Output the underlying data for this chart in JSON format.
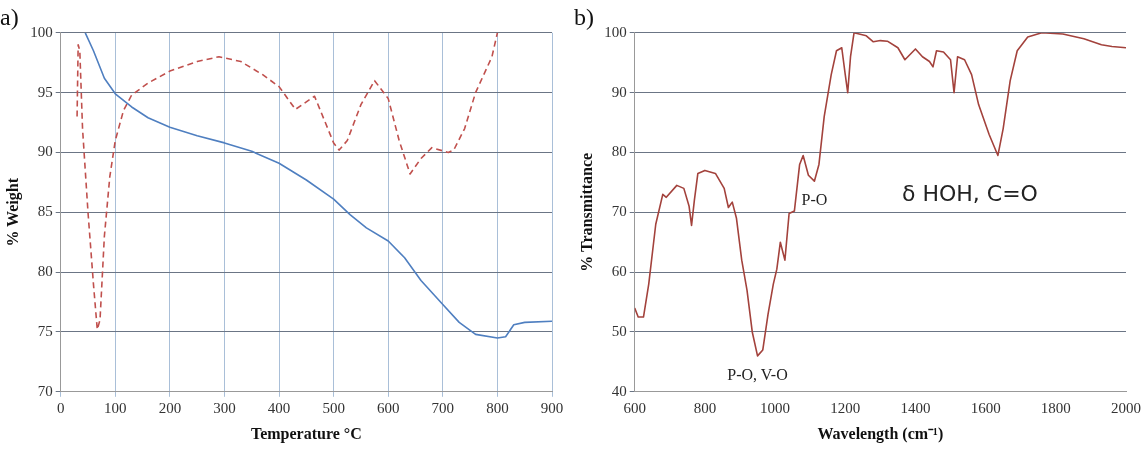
{
  "chart_data": [
    {
      "type": "line",
      "title": "a)",
      "xlabel": "Temperature °C",
      "ylabel": "% Weight",
      "xlim": [
        0,
        900
      ],
      "xticks": [
        0,
        100,
        200,
        300,
        400,
        500,
        600,
        700,
        800,
        900
      ],
      "ylim": [
        70,
        100
      ],
      "yticks": [
        70,
        75,
        80,
        85,
        90,
        95,
        100
      ],
      "grid": true,
      "marker": "none",
      "series": [
        {
          "color": "#4f7fc0",
          "line_style": "solid",
          "x": [
            45,
            60,
            80,
            100,
            130,
            160,
            200,
            250,
            300,
            350,
            400,
            450,
            500,
            530,
            560,
            600,
            630,
            660,
            700,
            730,
            760,
            800,
            815,
            830,
            850,
            900
          ],
          "values": [
            100,
            98.5,
            96.2,
            94.9,
            93.8,
            92.9,
            92.1,
            91.4,
            90.8,
            90.1,
            89.1,
            87.7,
            86.1,
            84.8,
            83.7,
            82.6,
            81.2,
            79.3,
            77.3,
            75.8,
            74.8,
            74.5,
            74.6,
            75.6,
            75.8,
            75.9
          ]
        },
        {
          "color": "#c0504d",
          "line_style": "dashed",
          "x": [
            30,
            32,
            35,
            40,
            50,
            60,
            67,
            72,
            80,
            90,
            100,
            115,
            130,
            160,
            200,
            250,
            290,
            330,
            370,
            400,
            430,
            465,
            500,
            510,
            525,
            550,
            575,
            600,
            620,
            640,
            660,
            680,
            710,
            720,
            740,
            760,
            790,
            800
          ],
          "values": [
            93,
            99,
            98.5,
            92,
            85,
            79,
            75.2,
            76,
            83,
            88,
            91,
            93.5,
            94.8,
            95.8,
            96.8,
            97.6,
            98,
            97.6,
            96.5,
            95.5,
            93.6,
            94.7,
            90.8,
            90.2,
            91,
            94,
            96,
            94.5,
            91,
            88.2,
            89.5,
            90.4,
            90,
            90.2,
            92,
            95,
            98,
            100
          ]
        }
      ]
    },
    {
      "type": "line",
      "title": "b)",
      "xlabel": "Wavelength (cm⁻¹)",
      "ylabel": "% Transmittance",
      "xlim": [
        600,
        2000
      ],
      "xticks": [
        600,
        800,
        1000,
        1200,
        1400,
        1600,
        1800,
        2000
      ],
      "ylim": [
        40,
        100
      ],
      "yticks": [
        40,
        50,
        60,
        70,
        80,
        90,
        100
      ],
      "grid": "y",
      "marker": "none",
      "annotations": [
        {
          "text": "P-O, V-O",
          "x": 950,
          "y": 46
        },
        {
          "text": "P-O",
          "x": 1112,
          "y": 75.2
        },
        {
          "text": "δ HOH, C=O",
          "x": 1635,
          "y": 79.5
        }
      ],
      "series": [
        {
          "color": "#a3423c",
          "line_style": "solid",
          "x": [
            600,
            610,
            625,
            640,
            660,
            680,
            690,
            720,
            740,
            755,
            762,
            770,
            780,
            800,
            830,
            855,
            867,
            878,
            890,
            905,
            920,
            935,
            950,
            965,
            980,
            995,
            1005,
            1015,
            1028,
            1040,
            1055,
            1070,
            1080,
            1095,
            1112,
            1125,
            1140,
            1160,
            1175,
            1190,
            1200,
            1207,
            1215,
            1225,
            1260,
            1280,
            1300,
            1320,
            1350,
            1370,
            1400,
            1420,
            1440,
            1450,
            1460,
            1480,
            1500,
            1510,
            1520,
            1540,
            1560,
            1580,
            1610,
            1635,
            1650,
            1670,
            1690,
            1720,
            1760,
            1820,
            1880,
            1930,
            1960,
            2000
          ],
          "values": [
            54,
            52.5,
            52.5,
            58,
            68,
            73,
            72.5,
            74.5,
            74,
            71,
            67.8,
            72,
            76.5,
            77,
            76.5,
            74,
            70.8,
            71.7,
            69,
            62,
            57,
            50,
            46,
            47,
            53,
            58,
            60.5,
            65,
            62,
            69.8,
            70.2,
            78,
            79.5,
            76.2,
            75.2,
            78,
            86,
            93,
            97,
            97.5,
            93,
            90,
            96,
            100,
            99.5,
            98.5,
            98.7,
            98.6,
            97.5,
            95.5,
            97.3,
            96,
            95.2,
            94.3,
            97,
            96.8,
            95.5,
            90,
            96,
            95.5,
            93,
            88,
            83,
            79.5,
            84,
            92,
            97,
            99.3,
            100,
            99.8,
            99,
            98,
            97.7,
            97.5
          ]
        }
      ]
    }
  ]
}
